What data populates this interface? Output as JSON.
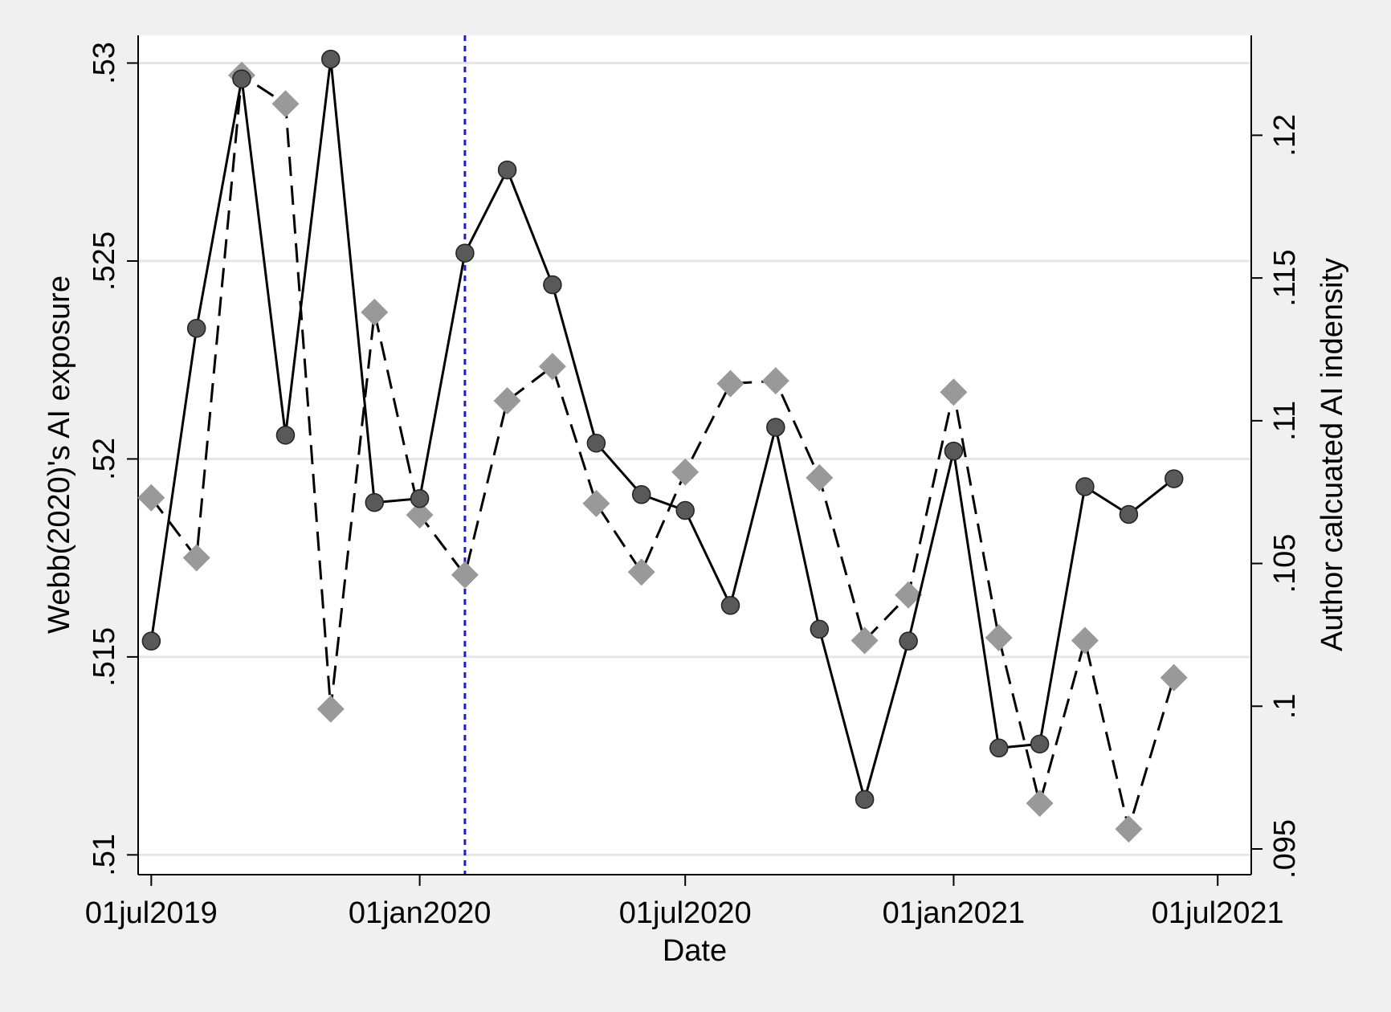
{
  "chart_data": {
    "type": "line",
    "xlabel": "Date",
    "ylabel": "Webb(2020)'s AI exposure",
    "y2label": "Author calcuated AI indensity",
    "xlim": [
      "2019-06-22",
      "2021-07-24"
    ],
    "ylim": [
      0.5095,
      0.5307
    ],
    "y2lim": [
      0.0941,
      0.1235
    ],
    "x_ticks": [
      {
        "date": "2019-07-01",
        "label": "01jul2019"
      },
      {
        "date": "2020-01-01",
        "label": "01jan2020"
      },
      {
        "date": "2020-07-01",
        "label": "01jul2020"
      },
      {
        "date": "2021-01-01",
        "label": "01jan2021"
      },
      {
        "date": "2021-07-01",
        "label": "01jul2021"
      }
    ],
    "y_ticks": [
      {
        "value": 0.51,
        "label": ".51"
      },
      {
        "value": 0.515,
        "label": ".515"
      },
      {
        "value": 0.52,
        "label": ".52"
      },
      {
        "value": 0.525,
        "label": ".525"
      },
      {
        "value": 0.53,
        "label": ".53"
      }
    ],
    "y2_ticks": [
      {
        "value": 0.095,
        "label": ".095"
      },
      {
        "value": 0.1,
        "label": ".1"
      },
      {
        "value": 0.105,
        "label": ".105"
      },
      {
        "value": 0.11,
        "label": ".11"
      },
      {
        "value": 0.115,
        "label": ".115"
      },
      {
        "value": 0.12,
        "label": ".12"
      }
    ],
    "x": [
      "2019-07-01",
      "2019-08-01",
      "2019-09-01",
      "2019-10-01",
      "2019-11-01",
      "2019-12-01",
      "2020-01-01",
      "2020-02-01",
      "2020-03-01",
      "2020-04-01",
      "2020-05-01",
      "2020-06-01",
      "2020-07-01",
      "2020-08-01",
      "2020-09-01",
      "2020-10-01",
      "2020-11-01",
      "2020-12-01",
      "2021-01-01",
      "2021-02-01",
      "2021-03-01",
      "2021-04-01",
      "2021-05-01",
      "2021-06-01"
    ],
    "series": [
      {
        "axis": "left",
        "line_style": "solid",
        "marker": "circle",
        "color": "#595959",
        "values": [
          0.5154,
          0.5233,
          0.5296,
          0.5206,
          0.5301,
          0.5189,
          0.519,
          0.5252,
          0.5273,
          0.5244,
          0.5204,
          0.5191,
          0.5187,
          0.5163,
          0.5208,
          0.5157,
          0.5114,
          0.5154,
          0.5202,
          0.5127,
          0.5128,
          0.5193,
          0.5186,
          0.5195
        ]
      },
      {
        "axis": "right",
        "line_style": "dashed",
        "marker": "diamond",
        "color": "#999999",
        "values": [
          0.1073,
          0.1052,
          0.1221,
          0.1211,
          0.0999,
          0.1138,
          0.1067,
          0.1046,
          0.1107,
          0.1119,
          0.1071,
          0.1047,
          0.1082,
          0.1113,
          0.1114,
          0.108,
          0.1023,
          0.1039,
          0.111,
          0.1024,
          0.0966,
          0.1023,
          0.0957,
          0.101
        ]
      }
    ],
    "vline": {
      "date": "2020-02-01",
      "color": "#1a1ae6",
      "style": "dotted"
    },
    "grid": true,
    "legend": false
  }
}
